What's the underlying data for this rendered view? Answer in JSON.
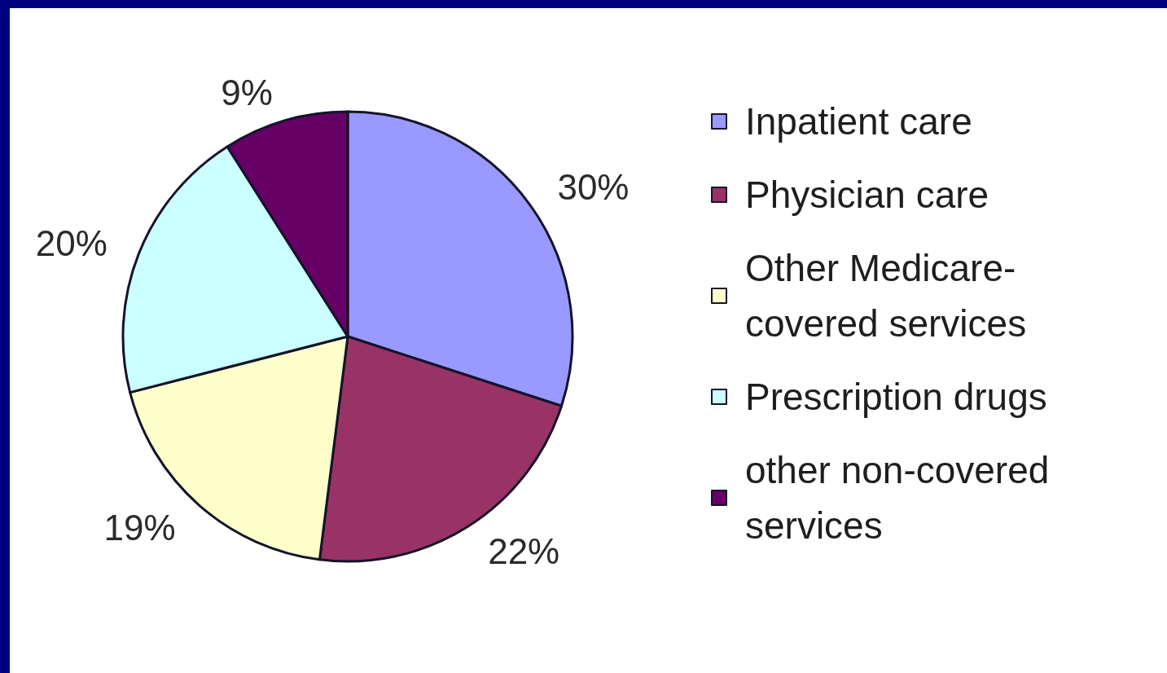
{
  "chart_data": {
    "type": "pie",
    "categories": [
      "Inpatient care",
      "Physician care",
      "Other Medicare-covered services",
      "Prescription drugs",
      "other non-covered services"
    ],
    "values": [
      30,
      22,
      19,
      20,
      9
    ],
    "colors": [
      "#9999ff",
      "#993366",
      "#ffffcc",
      "#ccffff",
      "#660066"
    ],
    "value_labels": [
      "30%",
      "22%",
      "19%",
      "20%",
      "9%"
    ],
    "legend": "right"
  }
}
